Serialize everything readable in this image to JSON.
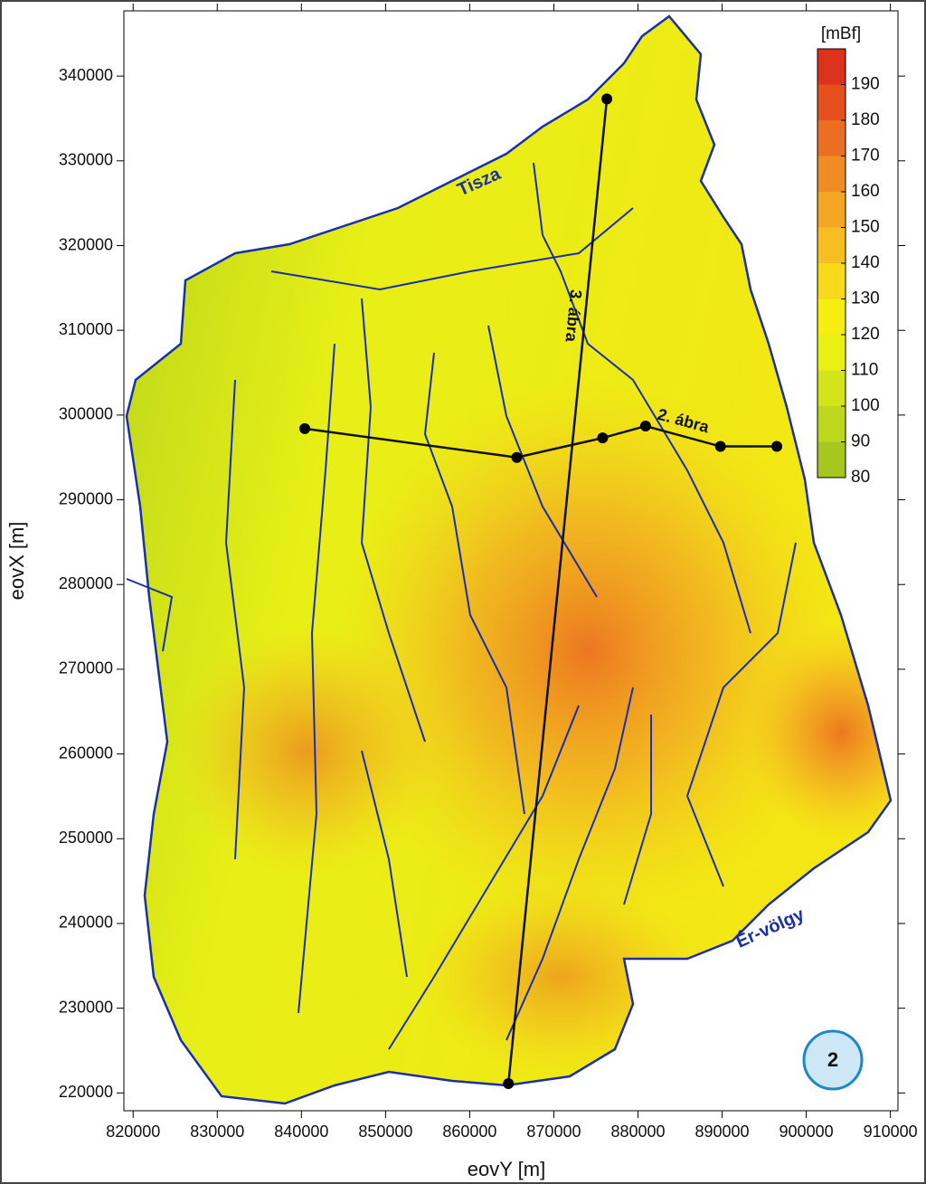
{
  "map": {
    "x_axis_label": "eovY [m]",
    "y_axis_label": "eovX [m]",
    "xlim": [
      818900,
      910900
    ],
    "ylim": [
      217900,
      347700
    ],
    "xticks": [
      820000,
      830000,
      840000,
      850000,
      860000,
      870000,
      880000,
      890000,
      900000,
      910000
    ],
    "yticks": [
      220000,
      230000,
      240000,
      250000,
      260000,
      270000,
      280000,
      290000,
      300000,
      310000,
      320000,
      330000,
      340000
    ],
    "colorbar": {
      "unit": "[mBf]",
      "range": [
        80,
        200
      ],
      "ticks": [
        80,
        90,
        100,
        110,
        120,
        130,
        140,
        150,
        160,
        170,
        180,
        190
      ],
      "colors": [
        "#a6c81e",
        "#bcd71c",
        "#d3e51a",
        "#eaf014",
        "#f5ee10",
        "#f8d81a",
        "#f7be22",
        "#f5a524",
        "#f18b24",
        "#ec6e22",
        "#e6501f",
        "#dd321c"
      ]
    },
    "river_labels": [
      "Tisza",
      "Ér-völgy"
    ],
    "profiles": [
      {
        "label": "2. ábra",
        "x": [
          840400,
          865600,
          875800,
          880900,
          889800,
          896500
        ],
        "y": [
          298400,
          295000,
          297300,
          298700,
          296300,
          296300
        ]
      },
      {
        "label": "3. ábra",
        "x": [
          876300,
          864600
        ],
        "y": [
          337300,
          221100
        ]
      }
    ],
    "badge": "2"
  }
}
